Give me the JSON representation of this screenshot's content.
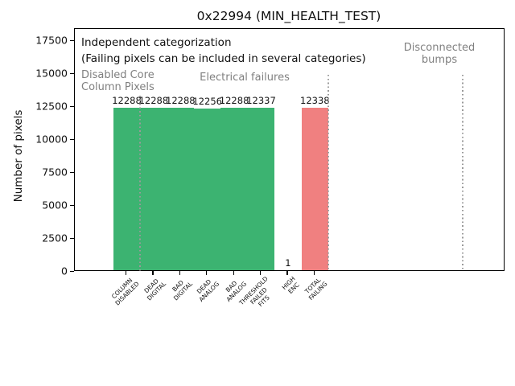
{
  "chart_data": {
    "type": "bar",
    "title": "0x22994 (MIN_HEALTH_TEST)",
    "ylabel": "Number of pixels",
    "xlabel": "",
    "grid": false,
    "legend": null,
    "categories": [
      [
        "COLUMN",
        "DISABLED"
      ],
      [
        "DEAD",
        "DIGITAL"
      ],
      [
        "BAD",
        "DIGITAL"
      ],
      [
        "DEAD",
        "ANALOG"
      ],
      [
        "BAD",
        "ANALOG"
      ],
      [
        "THRESHOLD",
        "FAILED",
        "FITS"
      ],
      [
        "HIGH",
        "ENC"
      ],
      [
        "TOTAL",
        "FAILING"
      ]
    ],
    "values": [
      12288,
      12288,
      12288,
      12256,
      12288,
      12337,
      1,
      12338
    ],
    "bar_value_labels": [
      "12288",
      "12288",
      "12288",
      "12256",
      "12288",
      "12337",
      "1",
      "12338"
    ],
    "bar_color_keys": [
      "green",
      "green",
      "green",
      "green",
      "green",
      "green",
      "green",
      "red"
    ],
    "yticks": [
      "0",
      "2500",
      "5000",
      "7500",
      "10000",
      "12500",
      "15000",
      "17500"
    ],
    "ytick_values": [
      0,
      2500,
      5000,
      7500,
      10000,
      12500,
      15000,
      17500
    ],
    "ylim": [
      0,
      18400
    ],
    "separators_data_x": [
      0.5,
      7.5,
      12.5
    ],
    "colors": {
      "green": "#3cb371",
      "red": "#f08080",
      "gray_text": "#808080",
      "dotted_line": "#9a9a9a",
      "text": "#111111"
    },
    "annotations": {
      "independent": "Independent categorization",
      "failing_note": "(Failing pixels can be included in several categories)",
      "region_disabled_line1": "Disabled Core",
      "region_disabled_line2": "Column Pixels",
      "region_electrical": "Electrical failures",
      "region_bumps_line1": "Disconnected",
      "region_bumps_line2": "bumps"
    }
  }
}
